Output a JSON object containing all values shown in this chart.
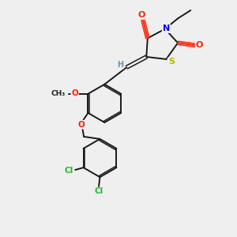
{
  "bg_color": "#efefef",
  "bond_color": "#1a1a1a",
  "atom_colors": {
    "O": "#ff2000",
    "N": "#0000ee",
    "S": "#b8b800",
    "Cl": "#22bb22",
    "H": "#6699aa"
  },
  "figsize": [
    3.0,
    3.0
  ],
  "dpi": 100,
  "xlim": [
    0,
    10
  ],
  "ylim": [
    0,
    10
  ]
}
